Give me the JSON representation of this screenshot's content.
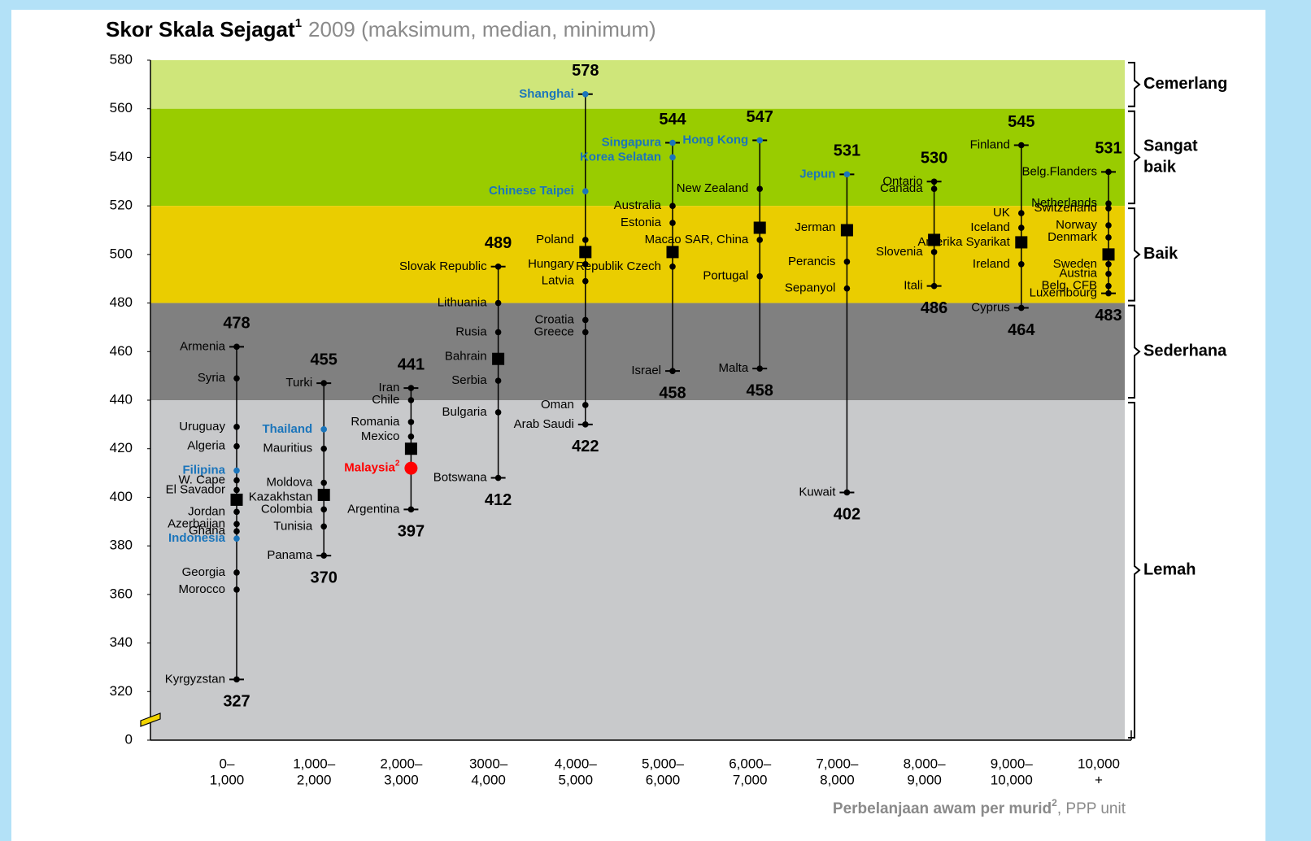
{
  "chart_data": {
    "type": "range-dot",
    "title": {
      "main": "Skor Skala Sejagat",
      "note": "1",
      "rest": "2009 (maksimum, median, minimum)"
    },
    "x_label": {
      "main": "Perbelanjaan awam per murid",
      "note": "2",
      "rest": ", PPP unit"
    },
    "ylim": [
      300,
      580
    ],
    "yticks": [
      0,
      320,
      340,
      360,
      380,
      400,
      420,
      440,
      460,
      480,
      500,
      520,
      540,
      560,
      580
    ],
    "axis_break": true,
    "point_color": "#000000",
    "categories": [
      [
        "0–",
        "1,000"
      ],
      [
        "1,000–",
        "2,000"
      ],
      [
        "2,000–",
        "3,000"
      ],
      [
        "3000–",
        "4,000"
      ],
      [
        "4,000–",
        "5,000"
      ],
      [
        "5,000–",
        "6,000"
      ],
      [
        "6,000–",
        "7,000"
      ],
      [
        "7,000–",
        "8,000"
      ],
      [
        "8,000–",
        "9,000"
      ],
      [
        "9,000–",
        "10,000"
      ],
      [
        "10,000",
        "+"
      ]
    ],
    "bands": [
      {
        "label": [
          "Cemerlang"
        ],
        "from": 560,
        "to": 580,
        "color": "#cfe67a"
      },
      {
        "label": [
          "Sangat",
          "baik"
        ],
        "from": 520,
        "to": 560,
        "color": "#99cc00"
      },
      {
        "label": [
          "Baik"
        ],
        "from": 480,
        "to": 520,
        "color": "#eacd00"
      },
      {
        "label": [
          "Sederhana"
        ],
        "from": 440,
        "to": 480,
        "color": "#808080"
      },
      {
        "label": [
          "Lemah"
        ],
        "from": 0,
        "to": 440,
        "color": "#c8c9cb"
      }
    ],
    "groups": [
      {
        "max": 478,
        "min": 327,
        "median": 399,
        "points": [
          {
            "name": "Armenia",
            "value": 462
          },
          {
            "name": "Syria",
            "value": 449
          },
          {
            "name": "Uruguay",
            "value": 429
          },
          {
            "name": "Algeria",
            "value": 421
          },
          {
            "name": "Filipina",
            "value": 411,
            "color": "#1b75bb"
          },
          {
            "name": "W. Cape",
            "value": 407
          },
          {
            "name": "El Savador",
            "value": 403
          },
          {
            "name": "Jordan",
            "value": 394
          },
          {
            "name": "Azerbaijan",
            "value": 389
          },
          {
            "name": "Ghana",
            "value": 386
          },
          {
            "name": "Indonesia",
            "value": 383,
            "color": "#1b75bb"
          },
          {
            "name": "Georgia",
            "value": 369
          },
          {
            "name": "Morocco",
            "value": 362
          },
          {
            "name": "Kyrgyzstan",
            "value": 325
          }
        ]
      },
      {
        "max": 455,
        "min": 370,
        "median": 401,
        "points": [
          {
            "name": "Turki",
            "value": 447
          },
          {
            "name": "Thailand",
            "value": 428,
            "color": "#1b75bb"
          },
          {
            "name": "Mauritius",
            "value": 420
          },
          {
            "name": "Moldova",
            "value": 406
          },
          {
            "name": "Kazakhstan",
            "value": 400
          },
          {
            "name": "Colombia",
            "value": 395
          },
          {
            "name": "Tunisia",
            "value": 388
          },
          {
            "name": "Panama",
            "value": 376
          }
        ]
      },
      {
        "max": 441,
        "min": 397,
        "median": 420,
        "points": [
          {
            "name": "Iran",
            "value": 445
          },
          {
            "name": "Chile",
            "value": 440
          },
          {
            "name": "Romania",
            "value": 431
          },
          {
            "name": "Mexico",
            "value": 425
          },
          {
            "name": "Malaysia",
            "note": "2",
            "value": 412,
            "color": "#ff0000"
          },
          {
            "name": "Argentina",
            "value": 395
          }
        ]
      },
      {
        "max": 489,
        "min": 412,
        "median": 457,
        "points": [
          {
            "name": "Slovak Republic",
            "value": 495
          },
          {
            "name": "Lithuania",
            "value": 480
          },
          {
            "name": "Rusia",
            "value": 468
          },
          {
            "name": "Bahrain",
            "value": 458
          },
          {
            "name": "Serbia",
            "value": 448
          },
          {
            "name": "Bulgaria",
            "value": 435
          },
          {
            "name": "Botswana",
            "value": 408
          }
        ]
      },
      {
        "max": 578,
        "min": 422,
        "median": 501,
        "points": [
          {
            "name": "Shanghai",
            "value": 566,
            "color": "#1b75bb"
          },
          {
            "name": "Chinese Taipei",
            "value": 526,
            "color": "#1b75bb"
          },
          {
            "name": "Poland",
            "value": 506
          },
          {
            "name": "Hungary",
            "value": 496
          },
          {
            "name": "Latvia",
            "value": 489
          },
          {
            "name": "Croatia",
            "value": 473
          },
          {
            "name": "Greece",
            "value": 468
          },
          {
            "name": "Oman",
            "value": 438
          },
          {
            "name": "Arab Saudi",
            "value": 430
          }
        ]
      },
      {
        "max": 544,
        "min": 458,
        "median": 501,
        "points": [
          {
            "name": "Singapura",
            "value": 546,
            "color": "#1b75bb"
          },
          {
            "name": "Korea Selatan",
            "value": 540,
            "color": "#1b75bb"
          },
          {
            "name": "Australia",
            "value": 520
          },
          {
            "name": "Estonia",
            "value": 513
          },
          {
            "name": "Republik Czech",
            "value": 495
          },
          {
            "name": "Israel",
            "value": 452
          }
        ]
      },
      {
        "max": 547,
        "min": 458,
        "median": 511,
        "points": [
          {
            "name": "Hong Kong",
            "value": 547,
            "color": "#1b75bb"
          },
          {
            "name": "New Zealand",
            "value": 527
          },
          {
            "name": "Macao SAR, China",
            "value": 506
          },
          {
            "name": "Portugal",
            "value": 491
          },
          {
            "name": "Malta",
            "value": 453
          }
        ]
      },
      {
        "max": 531,
        "min": 402,
        "median": 510,
        "points": [
          {
            "name": "Jepun",
            "value": 533,
            "color": "#1b75bb"
          },
          {
            "name": "Jerman",
            "value": 511
          },
          {
            "name": "Perancis",
            "value": 497
          },
          {
            "name": "Sepanyol",
            "value": 486
          },
          {
            "name": "Kuwait",
            "value": 402
          }
        ]
      },
      {
        "max": 530,
        "min": 486,
        "median": 506,
        "points": [
          {
            "name": "Ontario",
            "value": 530
          },
          {
            "name": "Canada",
            "value": 527
          },
          {
            "name": "Slovenia",
            "value": 501
          },
          {
            "name": "Itali",
            "value": 487
          }
        ]
      },
      {
        "max": 545,
        "min": 464,
        "median": 505,
        "points": [
          {
            "name": "Finland",
            "value": 545
          },
          {
            "name": "UK",
            "value": 517
          },
          {
            "name": "Iceland",
            "value": 511
          },
          {
            "name": "Amerika Syarikat",
            "value": 505
          },
          {
            "name": "Ireland",
            "value": 496
          },
          {
            "name": "Cyprus",
            "value": 478
          }
        ]
      },
      {
        "max": 531,
        "min": 483,
        "median": 500,
        "points": [
          {
            "name": "Belg.Flanders",
            "value": 534
          },
          {
            "name": "Netherlands",
            "value": 521
          },
          {
            "name": "Switzerland",
            "value": 519
          },
          {
            "name": "Norway",
            "value": 512
          },
          {
            "name": "Denmark",
            "value": 507
          },
          {
            "name": "Sweden",
            "value": 496
          },
          {
            "name": "Austria",
            "value": 492
          },
          {
            "name": "Belg. CFB",
            "value": 487
          },
          {
            "name": "Luxembourg",
            "value": 484
          }
        ]
      }
    ]
  }
}
